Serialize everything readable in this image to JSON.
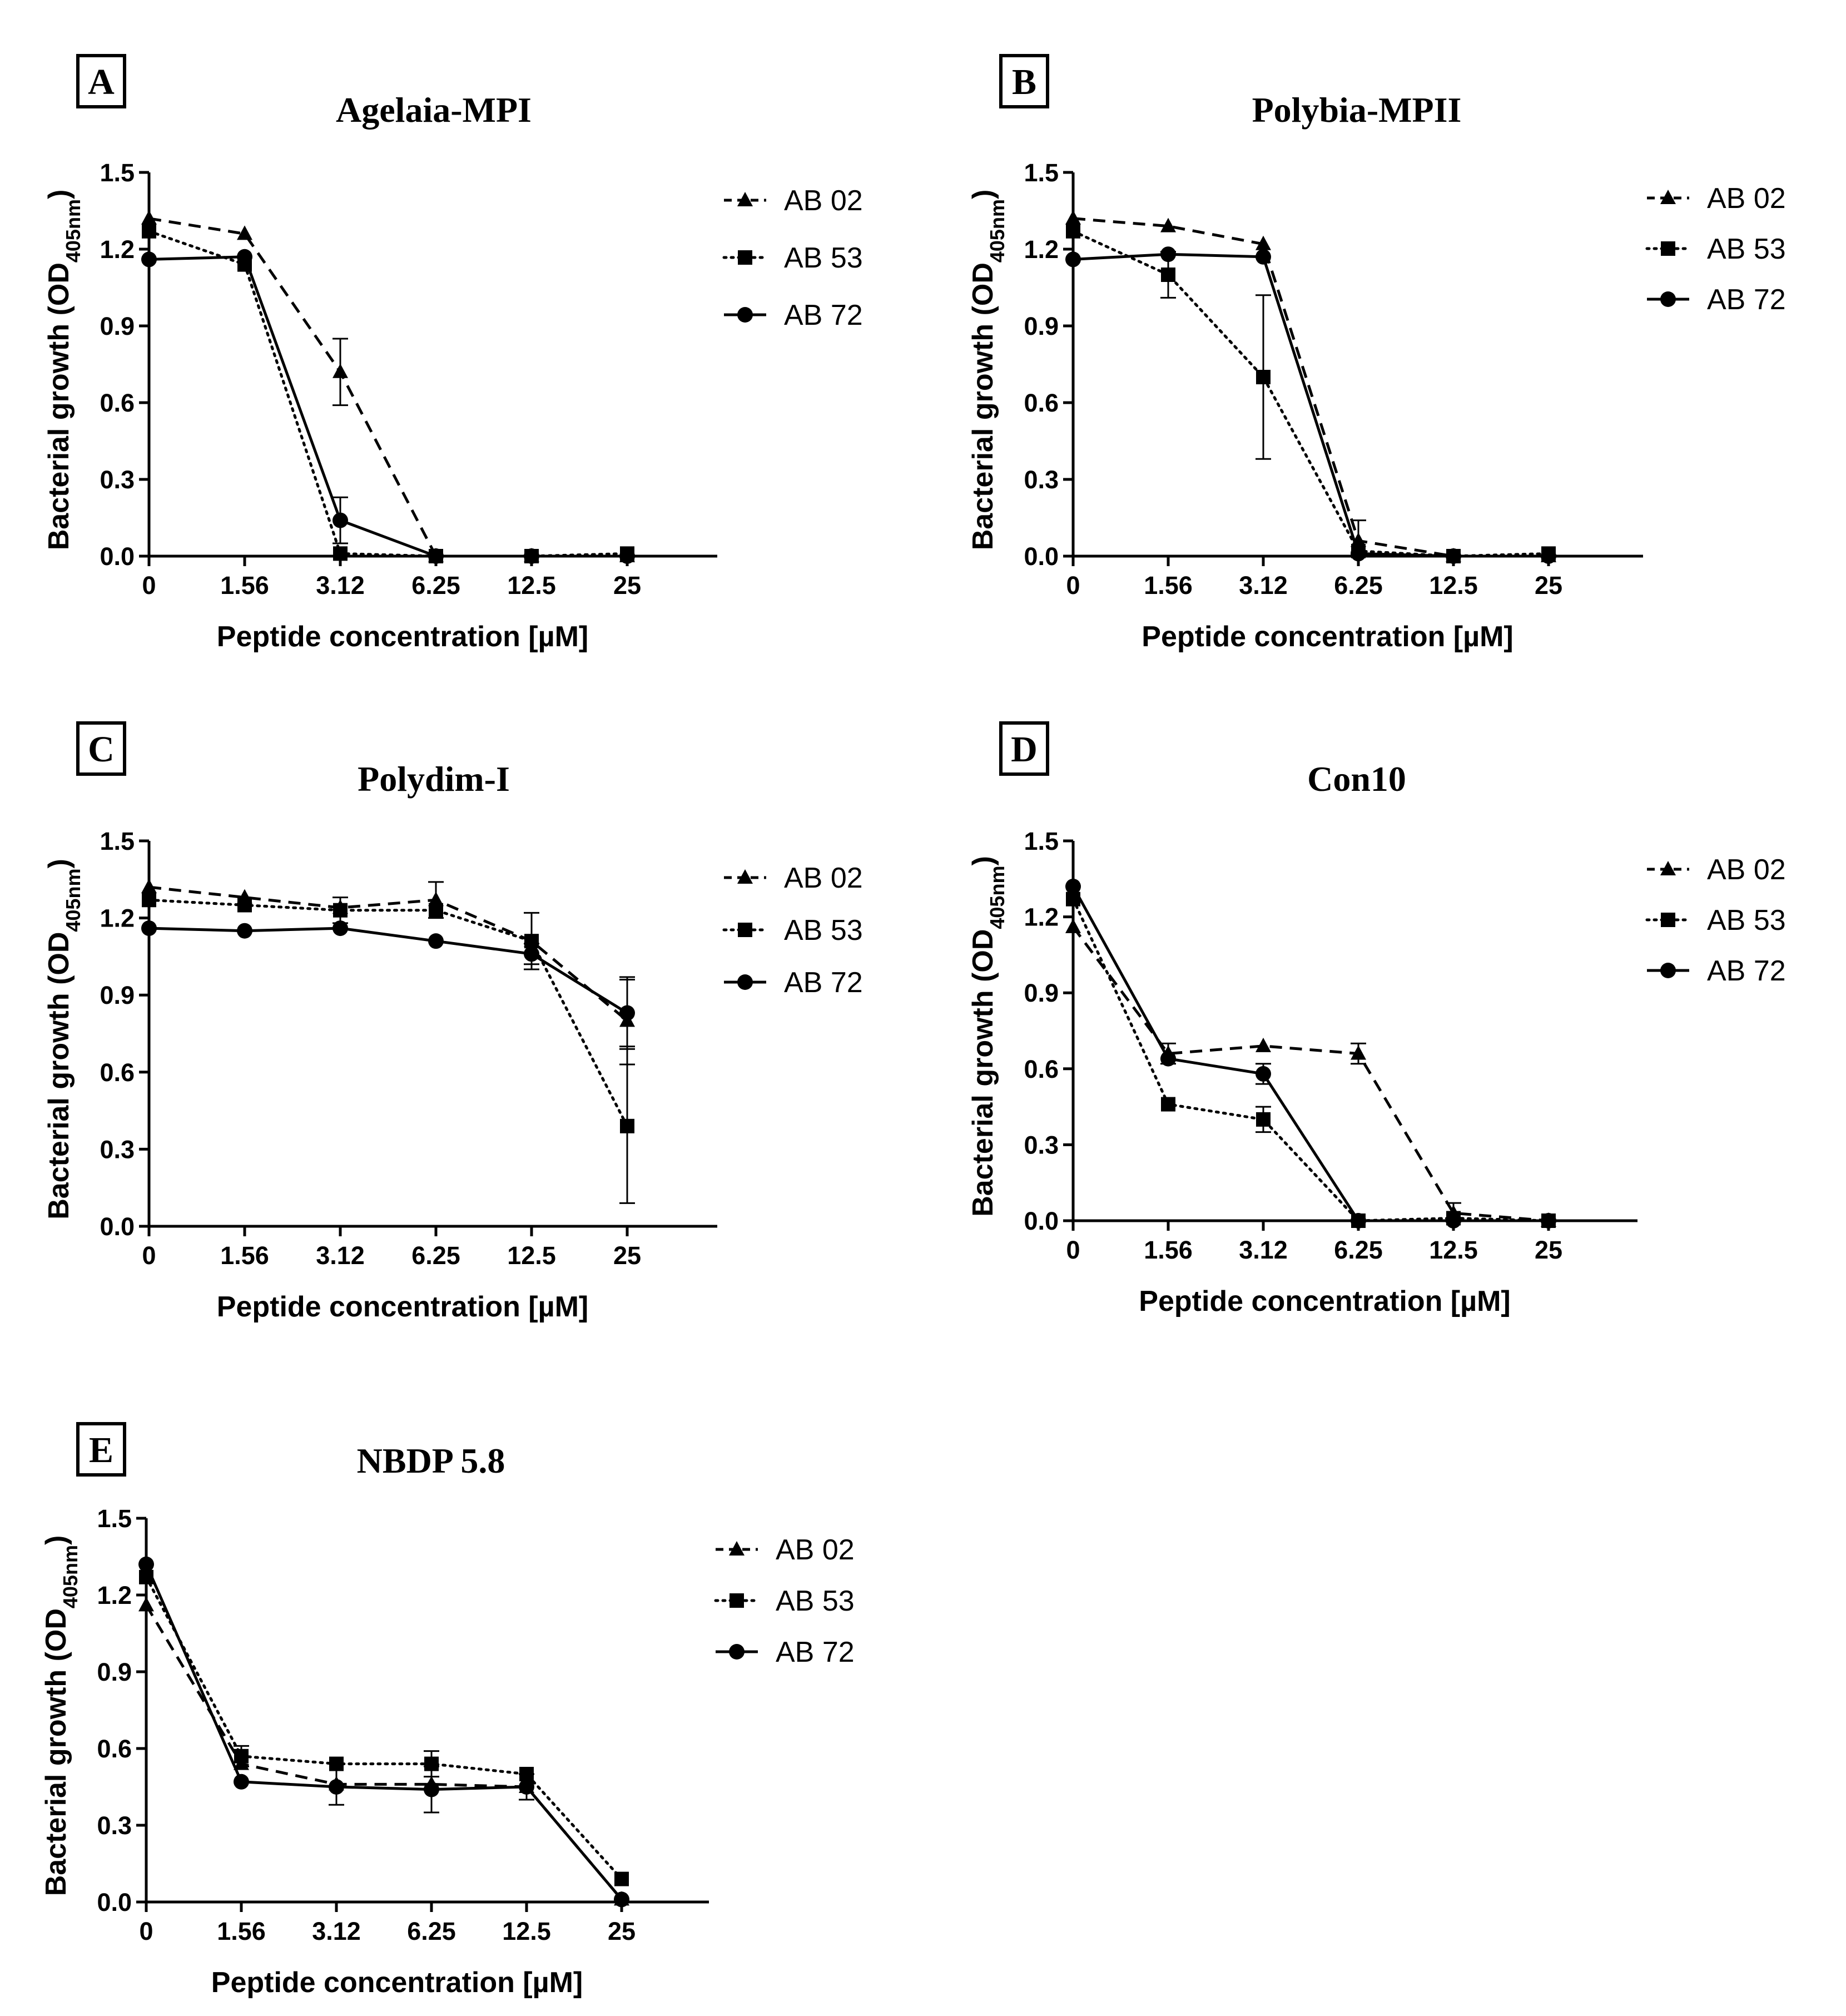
{
  "figure": {
    "background": "#ffffff",
    "ink": "#000000"
  },
  "chart_data": [
    {
      "type": "line",
      "panel_label": "A",
      "title": "Agelaia-MPI",
      "xlabel": "Peptide concentration [µM]",
      "ylabel": "Bacterial growth (OD405nm)",
      "ylabel_main": "Bacterial growth (OD",
      "ylabel_sub": "405nm",
      "ylabel_close": ")",
      "categories": [
        "0",
        "1.56",
        "3.12",
        "6.25",
        "12.5",
        "25"
      ],
      "yticks": [
        "0.0",
        "0.3",
        "0.6",
        "0.9",
        "1.2",
        "1.5"
      ],
      "ylim": [
        0,
        1.5
      ],
      "legend_position": "right",
      "series": [
        {
          "name": "AB 02",
          "marker": "triangle",
          "line": "dashed",
          "values": [
            1.32,
            1.26,
            0.72,
            0.0,
            0.0,
            0.0
          ],
          "errors": [
            0,
            0,
            0.13,
            0,
            0,
            0
          ]
        },
        {
          "name": "AB 53",
          "marker": "square",
          "line": "dotted",
          "values": [
            1.27,
            1.14,
            0.01,
            0.0,
            0.0,
            0.01
          ],
          "errors": [
            0,
            0,
            0,
            0,
            0,
            0
          ]
        },
        {
          "name": "AB 72",
          "marker": "circle",
          "line": "solid",
          "values": [
            1.16,
            1.17,
            0.14,
            0.0,
            0.0,
            0.0
          ],
          "errors": [
            0,
            0,
            0.09,
            0,
            0,
            0
          ]
        }
      ]
    },
    {
      "type": "line",
      "panel_label": "B",
      "title": "Polybia-MPII",
      "xlabel": "Peptide concentration [µM]",
      "ylabel": "Bacterial growth (OD405nm)",
      "ylabel_main": "Bacterial growth (OD",
      "ylabel_sub": "405nm",
      "ylabel_close": ")",
      "categories": [
        "0",
        "1.56",
        "3.12",
        "6.25",
        "12.5",
        "25"
      ],
      "yticks": [
        "0.0",
        "0.3",
        "0.6",
        "0.9",
        "1.2",
        "1.5"
      ],
      "ylim": [
        0,
        1.5
      ],
      "legend_position": "right",
      "series": [
        {
          "name": "AB 02",
          "marker": "triangle",
          "line": "dashed",
          "values": [
            1.32,
            1.29,
            1.22,
            0.06,
            0.0,
            0.0
          ],
          "errors": [
            0,
            0,
            0,
            0.08,
            0,
            0
          ]
        },
        {
          "name": "AB 53",
          "marker": "square",
          "line": "dotted",
          "values": [
            1.27,
            1.1,
            0.7,
            0.02,
            0.0,
            0.01
          ],
          "errors": [
            0,
            0.09,
            0.32,
            0,
            0,
            0
          ]
        },
        {
          "name": "AB 72",
          "marker": "circle",
          "line": "solid",
          "values": [
            1.16,
            1.18,
            1.17,
            0.01,
            0.0,
            0.0
          ],
          "errors": [
            0,
            0,
            0,
            0,
            0,
            0
          ]
        }
      ]
    },
    {
      "type": "line",
      "panel_label": "C",
      "title": "Polydim-I",
      "xlabel": "Peptide concentration [µM]",
      "ylabel": "Bacterial growth (OD405nm)",
      "ylabel_main": "Bacterial growth (OD",
      "ylabel_sub": "405nm",
      "ylabel_close": ")",
      "categories": [
        "0",
        "1.56",
        "3.12",
        "6.25",
        "12.5",
        "25"
      ],
      "yticks": [
        "0.0",
        "0.3",
        "0.6",
        "0.9",
        "1.2",
        "1.5"
      ],
      "ylim": [
        0,
        1.5
      ],
      "legend_position": "right",
      "series": [
        {
          "name": "AB 02",
          "marker": "triangle",
          "line": "dashed",
          "values": [
            1.32,
            1.28,
            1.24,
            1.27,
            1.11,
            0.8
          ],
          "errors": [
            0,
            0,
            0,
            0.07,
            0,
            0.17
          ]
        },
        {
          "name": "AB 53",
          "marker": "square",
          "line": "dotted",
          "values": [
            1.27,
            1.25,
            1.23,
            1.23,
            1.11,
            0.39
          ],
          "errors": [
            0,
            0,
            0.05,
            0,
            0.11,
            0.3
          ]
        },
        {
          "name": "AB 72",
          "marker": "circle",
          "line": "solid",
          "values": [
            1.16,
            1.15,
            1.16,
            1.11,
            1.06,
            0.83
          ],
          "errors": [
            0,
            0,
            0,
            0,
            0.04,
            0.13
          ]
        }
      ]
    },
    {
      "type": "line",
      "panel_label": "D",
      "title": "Con10",
      "xlabel": "Peptide concentration [µM]",
      "ylabel": "Bacterial growth (OD405nm)",
      "ylabel_main": "Bacterial growth (OD",
      "ylabel_sub": "405nm",
      "ylabel_close": ")",
      "categories": [
        "0",
        "1.56",
        "3.12",
        "6.25",
        "12.5",
        "25"
      ],
      "yticks": [
        "0.0",
        "0.3",
        "0.6",
        "0.9",
        "1.2",
        "1.5"
      ],
      "ylim": [
        0,
        1.5
      ],
      "legend_position": "right",
      "series": [
        {
          "name": "AB 02",
          "marker": "triangle",
          "line": "dashed",
          "values": [
            1.16,
            0.66,
            0.69,
            0.66,
            0.03,
            0.0
          ],
          "errors": [
            0,
            0.04,
            0,
            0.04,
            0.04,
            0
          ]
        },
        {
          "name": "AB 53",
          "marker": "square",
          "line": "dotted",
          "values": [
            1.27,
            0.46,
            0.4,
            0.0,
            0.01,
            0.0
          ],
          "errors": [
            0,
            0,
            0.05,
            0,
            0,
            0
          ]
        },
        {
          "name": "AB 72",
          "marker": "circle",
          "line": "solid",
          "values": [
            1.32,
            0.64,
            0.58,
            0.0,
            0.0,
            0.0
          ],
          "errors": [
            0,
            0,
            0.04,
            0,
            0,
            0
          ]
        }
      ]
    },
    {
      "type": "line",
      "panel_label": "E",
      "title": "NBDP 5.8",
      "xlabel": "Peptide concentration [µM]",
      "ylabel": "Bacterial growth (OD405nm)",
      "ylabel_main": "Bacterial growth (OD",
      "ylabel_sub": "405nm",
      "ylabel_close": ")",
      "categories": [
        "0",
        "1.56",
        "3.12",
        "6.25",
        "12.5",
        "25"
      ],
      "yticks": [
        "0.0",
        "0.3",
        "0.6",
        "0.9",
        "1.2",
        "1.5"
      ],
      "ylim": [
        0,
        1.5
      ],
      "legend_position": "right",
      "series": [
        {
          "name": "AB 02",
          "marker": "triangle",
          "line": "dashed",
          "values": [
            1.16,
            0.54,
            0.46,
            0.46,
            0.45,
            0.01
          ],
          "errors": [
            0,
            0,
            0.08,
            0,
            0,
            0
          ]
        },
        {
          "name": "AB 53",
          "marker": "square",
          "line": "dotted",
          "values": [
            1.27,
            0.57,
            0.54,
            0.54,
            0.5,
            0.09
          ],
          "errors": [
            0,
            0.04,
            0,
            0.05,
            0,
            0
          ]
        },
        {
          "name": "AB 72",
          "marker": "circle",
          "line": "solid",
          "values": [
            1.32,
            0.47,
            0.45,
            0.44,
            0.45,
            0.01
          ],
          "errors": [
            0,
            0,
            0,
            0.09,
            0.05,
            0
          ]
        }
      ]
    }
  ]
}
